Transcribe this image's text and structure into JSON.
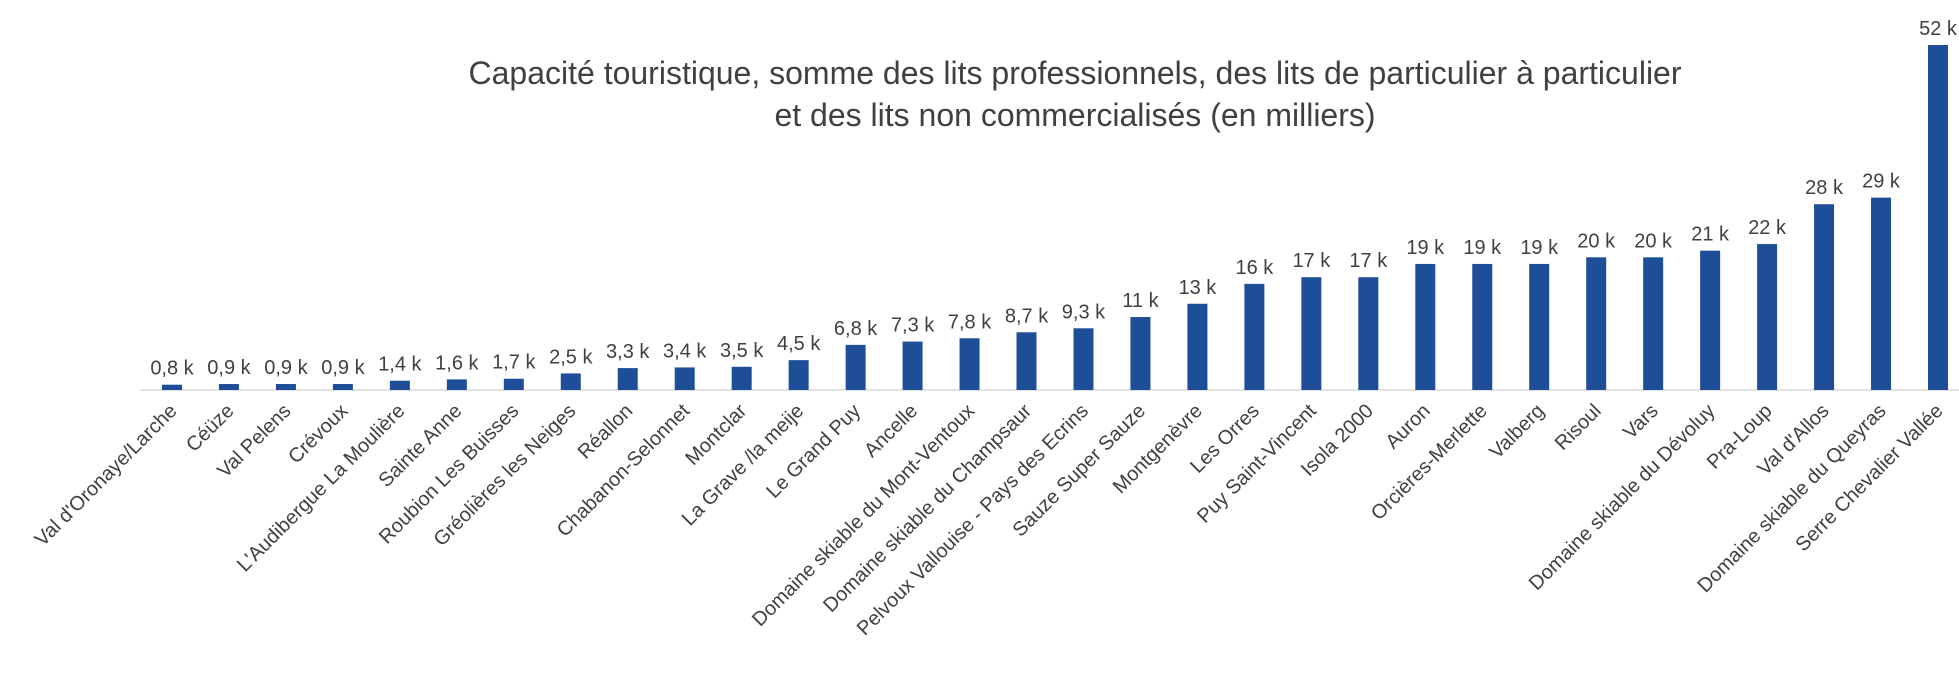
{
  "chart_data": {
    "type": "bar",
    "title": [
      "Capacité touristique, somme des lits professionnels, des lits de particulier à particulier",
      "et des lits non commercialisés (en milliers)"
    ],
    "categories": [
      "Val d'Oronaye/Larche",
      "Céüze",
      "Val Pelens",
      "Crévoux",
      "L'Audibergue La Moulière",
      "Sainte Anne",
      "Roubion Les Buisses",
      "Gréolières les Neiges",
      "Réallon",
      "Chabanon-Selonnet",
      "Montclar",
      "La Grave /la meije",
      "Le Grand Puy",
      "Ancelle",
      "Domaine skiable du Mont-Ventoux",
      "Domaine skiable du Champsaur",
      "Pelvoux Vallouise - Pays des Ecrins",
      "Sauze Super Sauze",
      "Montgenèvre",
      "Les Orres",
      "Puy Saint-Vincent",
      "Isola 2000",
      "Auron",
      "Orcières-Merlette",
      "Valberg",
      "Risoul",
      "Vars",
      "Domaine skiable du Dévoluy",
      "Pra-Loup",
      "Val d'Allos",
      "Domaine skiable du Queyras",
      "Serre Chevalier Vallée"
    ],
    "values": [
      0.8,
      0.9,
      0.9,
      0.9,
      1.4,
      1.6,
      1.7,
      2.5,
      3.3,
      3.4,
      3.5,
      4.5,
      6.8,
      7.3,
      7.8,
      8.7,
      9.3,
      11,
      13,
      16,
      17,
      17,
      19,
      19,
      19,
      20,
      20,
      21,
      22,
      28,
      29,
      52
    ],
    "value_labels": [
      "0,8 k",
      "0,9 k",
      "0,9 k",
      "0,9 k",
      "1,4 k",
      "1,6 k",
      "1,7 k",
      "2,5 k",
      "3,3 k",
      "3,4 k",
      "3,5 k",
      "4,5 k",
      "6,8 k",
      "7,3 k",
      "7,8 k",
      "8,7 k",
      "9,3 k",
      "11 k",
      "13 k",
      "16 k",
      "17 k",
      "17 k",
      "19 k",
      "19 k",
      "19 k",
      "20 k",
      "20 k",
      "21 k",
      "22 k",
      "28 k",
      "29 k",
      "52 k"
    ],
    "color": "#1f4e99",
    "ylim": [
      0,
      52
    ]
  }
}
